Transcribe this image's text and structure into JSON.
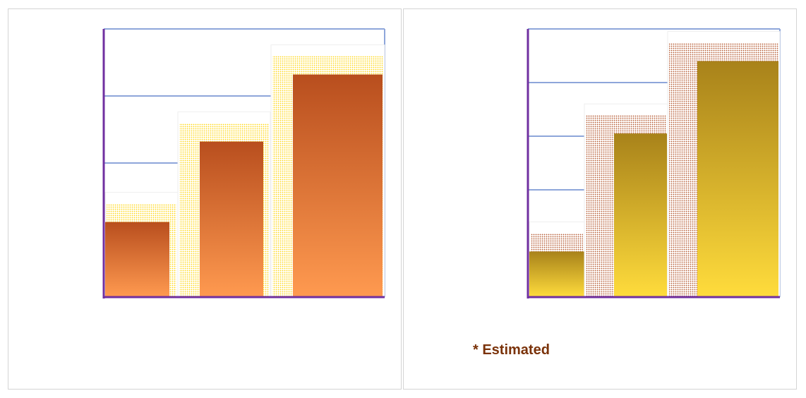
{
  "chart_data": [
    {
      "type": "bar",
      "values": [
        28,
        58,
        83
      ],
      "ylim": [
        0,
        100
      ],
      "gridlines": [
        25,
        50,
        75,
        100
      ],
      "grid": true,
      "colors": {
        "top": "#b84e1e",
        "bottom": "#ff9a50",
        "glow": "#ffd81c",
        "grid": "#8ea6da",
        "axis": "#7030a0"
      }
    },
    {
      "type": "bar",
      "values": [
        17,
        61,
        88
      ],
      "ylim": [
        0,
        100
      ],
      "gridlines": [
        40,
        60,
        80,
        100
      ],
      "grid": true,
      "colors": {
        "top": "#a8821a",
        "bottom": "#ffdc3c",
        "glow": "#b55a33",
        "grid": "#8ea6da",
        "axis": "#7030a0"
      }
    }
  ],
  "footnote": {
    "text": "* Estimated",
    "color": "#7a3209"
  }
}
